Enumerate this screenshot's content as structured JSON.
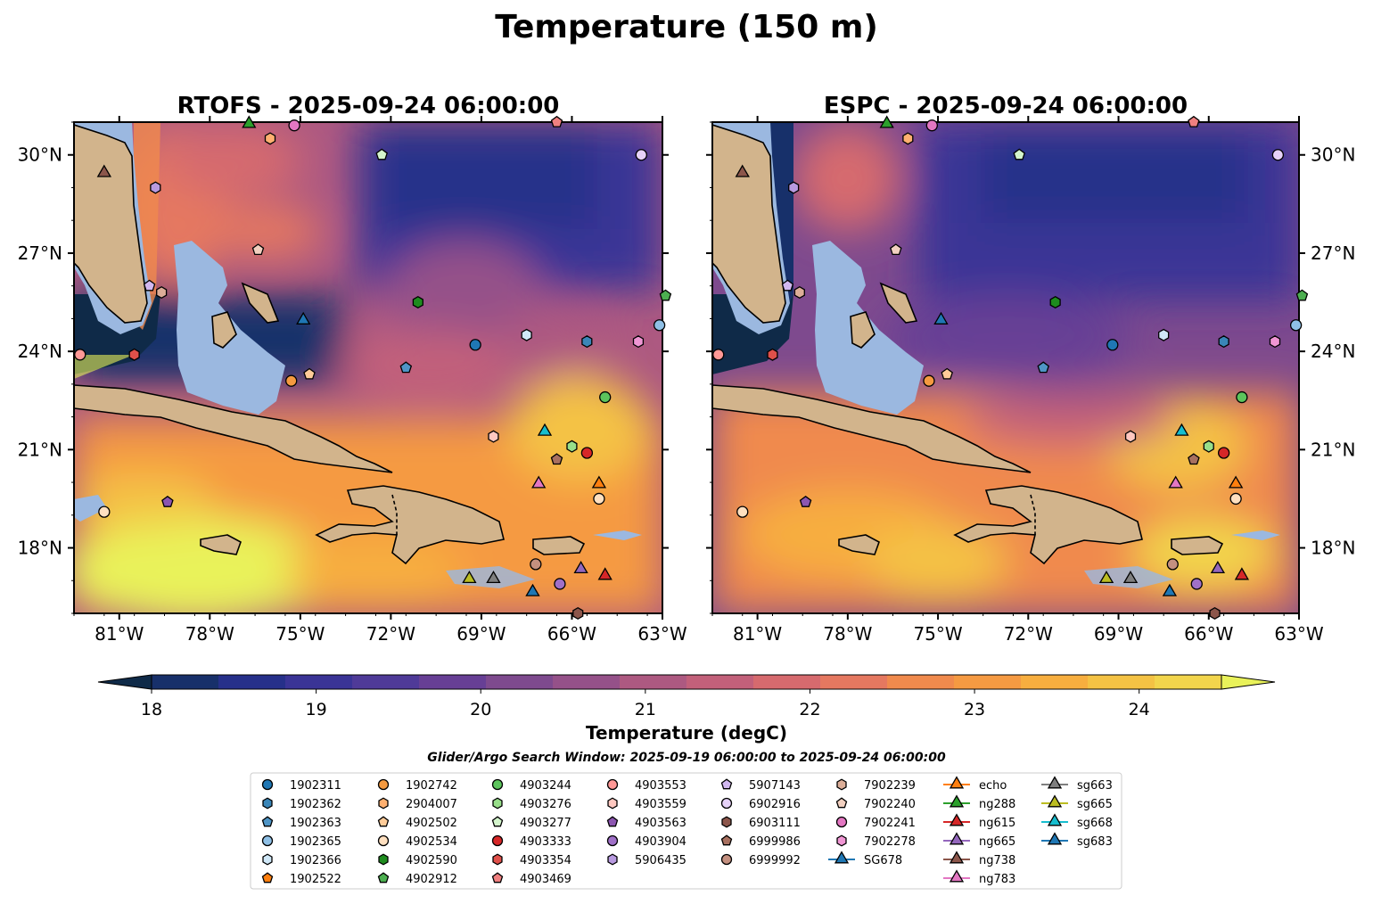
{
  "title": "Temperature (150 m)",
  "chart_data": {
    "type": "heatmap",
    "panels": [
      {
        "name": "rtofs",
        "title": "RTOFS - 2025-09-24 06:00:00"
      },
      {
        "name": "espc",
        "title": "ESPC - 2025-09-24 06:00:00"
      }
    ],
    "lon_range": [
      -82.5,
      -63
    ],
    "lat_range": [
      16,
      31
    ],
    "lon_ticks": [
      -81,
      -78,
      -75,
      -72,
      -69,
      -66,
      -63
    ],
    "lon_labels": [
      "81°W",
      "78°W",
      "75°W",
      "72°W",
      "69°W",
      "66°W",
      "63°W"
    ],
    "lat_ticks": [
      18,
      21,
      24,
      27,
      30
    ],
    "lat_labels": [
      "18°N",
      "21°N",
      "24°N",
      "27°N",
      "30°N"
    ],
    "colorbar": {
      "label": "Temperature (degC)",
      "min": 18,
      "max": 24.5,
      "step": 0.25,
      "tick_values": [
        18,
        19,
        20,
        21,
        22,
        23,
        24
      ],
      "tick_labels": [
        "18",
        "19",
        "20",
        "21",
        "22",
        "23",
        "24"
      ],
      "colors": [
        "#0f2a48",
        "#17306a",
        "#26308a",
        "#3a3496",
        "#4f3a98",
        "#673f95",
        "#7e4a8e",
        "#955189",
        "#ad5981",
        "#c2607a",
        "#d66a6e",
        "#e57860",
        "#f08a4d",
        "#f59a42",
        "#f7ae3f",
        "#f4c244",
        "#f2d54c",
        "#e9f25a"
      ]
    },
    "search_window": "Glider/Argo Search Window: 2025-09-19 06:00:00 to 2025-09-24 06:00:00",
    "legend": [
      {
        "label": "1902311",
        "marker": "circle",
        "color": "#1f77b4"
      },
      {
        "label": "1902362",
        "marker": "hexagon",
        "color": "#3a86b8"
      },
      {
        "label": "1902363",
        "marker": "pentagon",
        "color": "#4f95c6"
      },
      {
        "label": "1902365",
        "marker": "circle",
        "color": "#8fc0e6"
      },
      {
        "label": "1902366",
        "marker": "hexagon",
        "color": "#d0e8f8"
      },
      {
        "label": "1902522",
        "marker": "pentagon",
        "color": "#ff7f0e"
      },
      {
        "label": "1902742",
        "marker": "circle",
        "color": "#f59a40"
      },
      {
        "label": "2904007",
        "marker": "hexagon",
        "color": "#ffb070"
      },
      {
        "label": "4902502",
        "marker": "pentagon",
        "color": "#ffcc99"
      },
      {
        "label": "4902534",
        "marker": "circle",
        "color": "#ffe0c0"
      },
      {
        "label": "4902590",
        "marker": "hexagon",
        "color": "#1e8c1e"
      },
      {
        "label": "4902912",
        "marker": "pentagon",
        "color": "#4caf50"
      },
      {
        "label": "4903244",
        "marker": "circle",
        "color": "#5cc45c"
      },
      {
        "label": "4903276",
        "marker": "hexagon",
        "color": "#98df8a"
      },
      {
        "label": "4903277",
        "marker": "pentagon",
        "color": "#d4f5cc"
      },
      {
        "label": "4903333",
        "marker": "circle",
        "color": "#d62728"
      },
      {
        "label": "4903354",
        "marker": "hexagon",
        "color": "#e0504a"
      },
      {
        "label": "4903469",
        "marker": "pentagon",
        "color": "#f08080"
      },
      {
        "label": "4903553",
        "marker": "circle",
        "color": "#ff9896"
      },
      {
        "label": "4903559",
        "marker": "hexagon",
        "color": "#ffc8c0"
      },
      {
        "label": "4903563",
        "marker": "pentagon",
        "color": "#8c56b0"
      },
      {
        "label": "4903904",
        "marker": "circle",
        "color": "#a070c8"
      },
      {
        "label": "5906435",
        "marker": "hexagon",
        "color": "#b89ae0"
      },
      {
        "label": "5907143",
        "marker": "pentagon",
        "color": "#d2b8f0"
      },
      {
        "label": "6902916",
        "marker": "circle",
        "color": "#e6d2f8"
      },
      {
        "label": "6903111",
        "marker": "hexagon",
        "color": "#8c564b"
      },
      {
        "label": "6999986",
        "marker": "pentagon",
        "color": "#a87060"
      },
      {
        "label": "6999992",
        "marker": "circle",
        "color": "#c49080"
      },
      {
        "label": "7902239",
        "marker": "hexagon",
        "color": "#dcae98"
      },
      {
        "label": "7902240",
        "marker": "pentagon",
        "color": "#f2d0c0"
      },
      {
        "label": "7902241",
        "marker": "circle",
        "color": "#e377c2"
      },
      {
        "label": "7902278",
        "marker": "hexagon",
        "color": "#f096d4"
      },
      {
        "label": "SG678",
        "marker": "triangle",
        "color": "#1f77b4"
      },
      {
        "label": "echo",
        "marker": "triangle",
        "color": "#ff7f0e"
      },
      {
        "label": "ng288",
        "marker": "triangle",
        "color": "#2ca02c"
      },
      {
        "label": "ng615",
        "marker": "triangle",
        "color": "#d62728"
      },
      {
        "label": "ng665",
        "marker": "triangle",
        "color": "#9467bd"
      },
      {
        "label": "ng738",
        "marker": "triangle",
        "color": "#8c564b"
      },
      {
        "label": "ng783",
        "marker": "triangle",
        "color": "#e377c2"
      },
      {
        "label": "sg663",
        "marker": "triangle",
        "color": "#7f7f7f"
      },
      {
        "label": "sg665",
        "marker": "triangle",
        "color": "#bcbd22"
      },
      {
        "label": "sg668",
        "marker": "triangle",
        "color": "#17becf"
      },
      {
        "label": "sg683",
        "marker": "triangle",
        "color": "#1f77b4"
      }
    ],
    "points": [
      {
        "id": "1902311",
        "lon": -69.2,
        "lat": 24.2
      },
      {
        "id": "1902362",
        "lon": -65.5,
        "lat": 24.3
      },
      {
        "id": "1902363",
        "lon": -71.5,
        "lat": 23.5
      },
      {
        "id": "1902365",
        "lon": -63.1,
        "lat": 24.8
      },
      {
        "id": "1902366",
        "lon": -67.5,
        "lat": 24.5
      },
      {
        "id": "1902742",
        "lon": -75.3,
        "lat": 23.1
      },
      {
        "id": "2904007",
        "lon": -76.0,
        "lat": 30.5
      },
      {
        "id": "4902502",
        "lon": -74.7,
        "lat": 23.3
      },
      {
        "id": "4902534",
        "lon": -65.1,
        "lat": 19.5
      },
      {
        "id": "4902590",
        "lon": -71.1,
        "lat": 25.5
      },
      {
        "id": "4902912",
        "lon": -62.9,
        "lat": 25.7
      },
      {
        "id": "4903244",
        "lon": -64.9,
        "lat": 22.6
      },
      {
        "id": "4903276",
        "lon": -66.0,
        "lat": 21.1
      },
      {
        "id": "4903277",
        "lon": -72.3,
        "lat": 30.0
      },
      {
        "id": "4903333",
        "lon": -65.5,
        "lat": 20.9
      },
      {
        "id": "4903354",
        "lon": -80.5,
        "lat": 23.9
      },
      {
        "id": "4903469",
        "lon": -66.5,
        "lat": 31.0
      },
      {
        "id": "4903553",
        "lon": -82.3,
        "lat": 23.9
      },
      {
        "id": "4903559",
        "lon": -68.6,
        "lat": 21.4
      },
      {
        "id": "4903563",
        "lon": -79.4,
        "lat": 19.4
      },
      {
        "id": "4903904",
        "lon": -66.4,
        "lat": 16.9
      },
      {
        "id": "5906435",
        "lon": -79.8,
        "lat": 29.0
      },
      {
        "id": "5907143",
        "lon": -80.0,
        "lat": 26.0
      },
      {
        "id": "6902916",
        "lon": -63.7,
        "lat": 30.0
      },
      {
        "id": "6903111",
        "lon": -65.8,
        "lat": 16.0
      },
      {
        "id": "6999986",
        "lon": -66.5,
        "lat": 20.7
      },
      {
        "id": "6999992",
        "lon": -67.2,
        "lat": 17.5
      },
      {
        "id": "7902239",
        "lon": -79.6,
        "lat": 25.8
      },
      {
        "id": "7902240",
        "lon": -76.4,
        "lat": 27.1
      },
      {
        "id": "7902241",
        "lon": -75.2,
        "lat": 30.9
      },
      {
        "id": "7902278",
        "lon": -63.8,
        "lat": 24.3
      },
      {
        "id": "SG678",
        "lon": -74.9,
        "lat": 25.0
      },
      {
        "id": "echo",
        "lon": -65.1,
        "lat": 20.0
      },
      {
        "id": "ng288",
        "lon": -76.7,
        "lat": 31.0
      },
      {
        "id": "ng615",
        "lon": -64.9,
        "lat": 17.2
      },
      {
        "id": "ng665",
        "lon": -65.7,
        "lat": 17.4
      },
      {
        "id": "ng738",
        "lon": -81.5,
        "lat": 29.5
      },
      {
        "id": "ng783",
        "lon": -67.1,
        "lat": 20.0
      },
      {
        "id": "sg663",
        "lon": -68.6,
        "lat": 17.1
      },
      {
        "id": "sg665",
        "lon": -69.4,
        "lat": 17.1
      },
      {
        "id": "sg668",
        "lon": -66.9,
        "lat": 21.6
      },
      {
        "id": "sg683",
        "lon": -67.3,
        "lat": 16.7
      },
      {
        "id": "4902534b",
        "lon": -81.5,
        "lat": 19.1
      }
    ]
  }
}
